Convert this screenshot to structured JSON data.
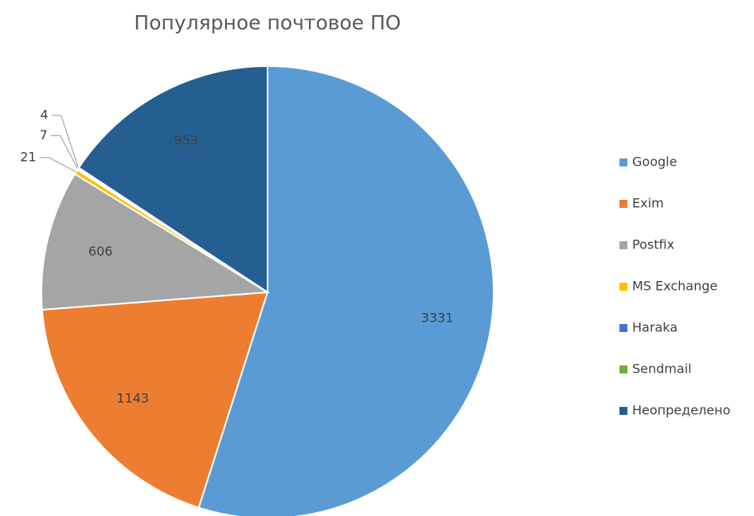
{
  "chart_data": {
    "type": "pie",
    "title": "Популярное почтовое ПО",
    "categories": [
      "Google",
      "Exim",
      "Postfix",
      "MS Exchange",
      "Haraka",
      "Sendmail",
      "Неопределено"
    ],
    "values": [
      3331,
      1143,
      606,
      21,
      7,
      4,
      953
    ],
    "colors": [
      "#5b9bd5",
      "#ed7d31",
      "#a5a5a5",
      "#ffc000",
      "#4472c4",
      "#70ad47",
      "#255e91"
    ],
    "legend": "right"
  }
}
